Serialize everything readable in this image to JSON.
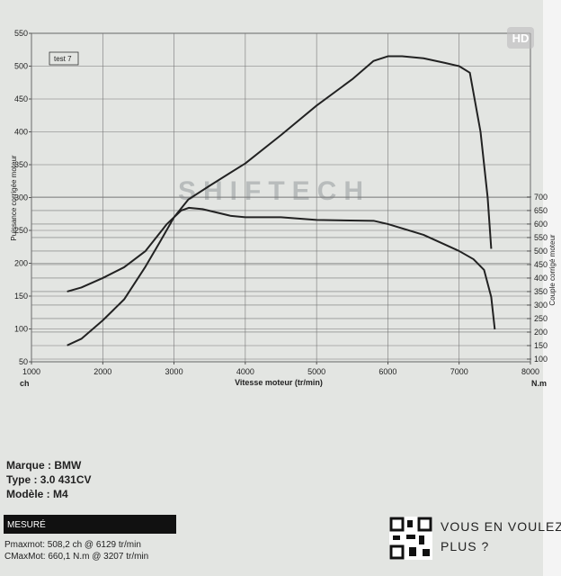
{
  "chart_data": {
    "type": "line",
    "watermark": "SHIFTECH",
    "badge": "HD",
    "legend_box": "test 7",
    "ylabel": "Puissance corrigée moteur",
    "y2label": "Couple corrigé moteur",
    "xlabel": "Vitesse moteur (tr/min)",
    "yunit": "ch",
    "y2unit": "N.m",
    "xlim": [
      1000,
      8000
    ],
    "xticks": [
      1000,
      2000,
      3000,
      4000,
      5000,
      6000,
      7000,
      8000
    ],
    "ylim": [
      50,
      550
    ],
    "yticks": [
      50,
      100,
      150,
      200,
      250,
      300,
      350,
      400,
      450,
      500,
      550
    ],
    "y2lim": [
      90,
      1306
    ],
    "y2ticks": [
      100,
      150,
      200,
      250,
      300,
      350,
      400,
      450,
      500,
      550,
      600,
      650,
      700
    ],
    "grid": true,
    "series": [
      {
        "name": "Puissance",
        "color": "#222222",
        "x": [
          1500,
          1700,
          2000,
          2300,
          2600,
          2800,
          3000,
          3200,
          3500,
          4000,
          4500,
          5000,
          5500,
          5800,
          6000,
          6200,
          6500,
          6800,
          7000,
          7150,
          7300,
          7400,
          7450
        ],
        "values": [
          75,
          85,
          113,
          145,
          195,
          232,
          270,
          297,
          318,
          352,
          395,
          440,
          480,
          508,
          515,
          515,
          512,
          505,
          500,
          490,
          400,
          300,
          222
        ]
      },
      {
        "name": "Couple",
        "color": "#222222",
        "axis": "y2",
        "x": [
          1500,
          1700,
          2000,
          2300,
          2600,
          2900,
          3100,
          3207,
          3400,
          3800,
          4000,
          4500,
          5000,
          5800,
          6000,
          6500,
          7000,
          7200,
          7350,
          7450,
          7500
        ],
        "values": [
          350,
          365,
          400,
          440,
          500,
          600,
          650,
          660,
          655,
          630,
          625,
          625,
          615,
          612,
          600,
          560,
          500,
          470,
          430,
          330,
          210
        ]
      }
    ]
  },
  "info": {
    "marque": "Marque  : BMW",
    "type": "Type  : 3.0 431CV",
    "modele": "Modèle  : M4",
    "section": "MESURÉ",
    "pmax": "Pmaxmot: 508,2 ch @ 6129 tr/min",
    "cmax": "CMaxMot: 660,1 N.m @ 3207 tr/min",
    "promo_1": "VOUS EN VOULEZ",
    "promo_2": "PLUS ?"
  }
}
